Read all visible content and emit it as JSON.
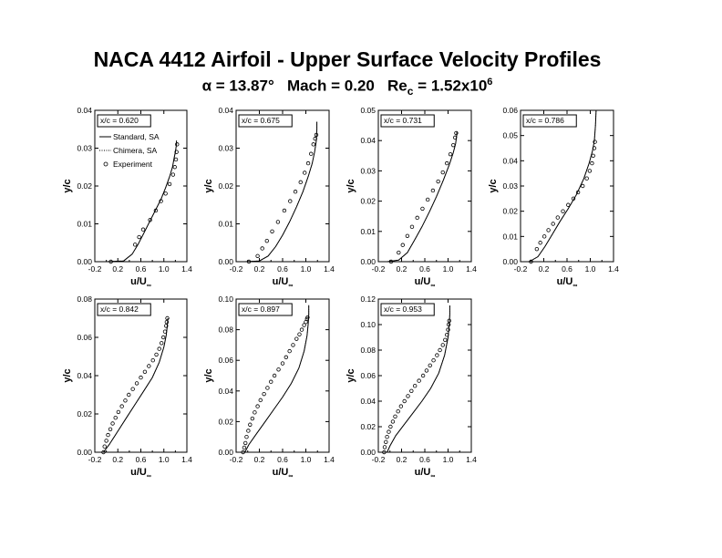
{
  "title": "NACA 4412 Airfoil - Upper Surface Velocity Profiles",
  "subtitle": {
    "alpha_symbol": "α",
    "alpha_text": " = 13.87°",
    "mach": "Mach = 0.20",
    "re_main": "Re",
    "re_sub": "c",
    "re_value": " = 1.52x10",
    "re_exp": "6"
  },
  "legend": {
    "items": [
      {
        "label": "Standard, SA",
        "style": "solid"
      },
      {
        "label": "Chimera, SA",
        "style": "dotted"
      },
      {
        "label": "Experiment",
        "style": "circle"
      }
    ]
  },
  "chart_data": [
    {
      "type": "line",
      "station_label": "x/c = 0.620",
      "xlabel": "u/U",
      "xlabel_sub": "∞",
      "ylabel": "y/c",
      "xlim": [
        -0.2,
        1.4
      ],
      "ylim": [
        0,
        0.04
      ],
      "xticks": [
        "-0.2",
        "0.2",
        "0.6",
        "1.0",
        "1.4"
      ],
      "yticks": [
        "0.00",
        "0.01",
        "0.02",
        "0.03",
        "0.04"
      ],
      "has_legend": true,
      "series": [
        {
          "name": "Standard, SA",
          "style": "solid",
          "x": [
            0.0,
            0.3,
            0.45,
            0.55,
            0.65,
            0.75,
            0.85,
            0.95,
            1.03,
            1.1,
            1.15,
            1.18,
            1.2,
            1.22,
            1.22
          ],
          "y": [
            0.0,
            0.0002,
            0.002,
            0.0045,
            0.0075,
            0.0105,
            0.0135,
            0.0165,
            0.0195,
            0.0225,
            0.025,
            0.0275,
            0.029,
            0.031,
            0.032
          ]
        },
        {
          "name": "Chimera, SA",
          "style": "dotted",
          "x": [
            0.0,
            0.3,
            0.45,
            0.55,
            0.65,
            0.75,
            0.85,
            0.95,
            1.03,
            1.1,
            1.15,
            1.18,
            1.2,
            1.22,
            1.22
          ],
          "y": [
            0.0,
            0.0002,
            0.002,
            0.0045,
            0.0075,
            0.0105,
            0.0135,
            0.0165,
            0.0195,
            0.0225,
            0.025,
            0.0275,
            0.029,
            0.031,
            0.032
          ]
        },
        {
          "name": "Experiment",
          "style": "circle",
          "x": [
            0.08,
            0.5,
            0.57,
            0.64,
            0.76,
            0.86,
            0.95,
            1.03,
            1.1,
            1.16,
            1.19,
            1.21,
            1.22,
            1.23
          ],
          "y": [
            0.0,
            0.0045,
            0.0065,
            0.0085,
            0.011,
            0.0135,
            0.016,
            0.018,
            0.0205,
            0.023,
            0.025,
            0.027,
            0.029,
            0.031
          ]
        }
      ]
    },
    {
      "type": "line",
      "station_label": "x/c = 0.675",
      "xlabel": "u/U",
      "xlabel_sub": "∞",
      "ylabel": "y/c",
      "xlim": [
        -0.2,
        1.4
      ],
      "ylim": [
        0,
        0.04
      ],
      "xticks": [
        "-0.2",
        "0.2",
        "0.6",
        "1.0",
        "1.4"
      ],
      "yticks": [
        "0.00",
        "0.01",
        "0.02",
        "0.03",
        "0.04"
      ],
      "has_legend": false,
      "series": [
        {
          "name": "Standard, SA",
          "style": "solid",
          "x": [
            -0.05,
            0.2,
            0.35,
            0.48,
            0.6,
            0.72,
            0.84,
            0.95,
            1.04,
            1.11,
            1.15,
            1.18,
            1.19,
            1.19
          ],
          "y": [
            0.0,
            0.0002,
            0.0015,
            0.004,
            0.007,
            0.0105,
            0.0145,
            0.0185,
            0.0225,
            0.026,
            0.029,
            0.032,
            0.035,
            0.037
          ]
        },
        {
          "name": "Chimera, SA",
          "style": "dotted",
          "x": [
            -0.05,
            0.2,
            0.35,
            0.48,
            0.6,
            0.72,
            0.84,
            0.95,
            1.04,
            1.11,
            1.15,
            1.18,
            1.19,
            1.19
          ],
          "y": [
            0.0,
            0.0002,
            0.0015,
            0.004,
            0.007,
            0.0105,
            0.0145,
            0.0185,
            0.0225,
            0.026,
            0.029,
            0.032,
            0.035,
            0.037
          ]
        },
        {
          "name": "Experiment",
          "style": "circle",
          "x": [
            0.02,
            0.17,
            0.25,
            0.33,
            0.42,
            0.52,
            0.63,
            0.73,
            0.82,
            0.91,
            0.98,
            1.04,
            1.09,
            1.13,
            1.16,
            1.18
          ],
          "y": [
            0.0,
            0.0015,
            0.0035,
            0.0055,
            0.008,
            0.0105,
            0.0135,
            0.016,
            0.0185,
            0.021,
            0.0235,
            0.026,
            0.0285,
            0.031,
            0.0325,
            0.0335
          ]
        }
      ]
    },
    {
      "type": "line",
      "station_label": "x/c = 0.731",
      "xlabel": "u/U",
      "xlabel_sub": "∞",
      "ylabel": "y/c",
      "xlim": [
        -0.2,
        1.4
      ],
      "ylim": [
        0,
        0.05
      ],
      "xticks": [
        "-0.2",
        "0.2",
        "0.6",
        "1.0",
        "1.4"
      ],
      "yticks": [
        "0.00",
        "0.01",
        "0.02",
        "0.03",
        "0.04",
        "0.05"
      ],
      "has_legend": false,
      "series": [
        {
          "name": "Standard, SA",
          "style": "solid",
          "x": [
            -0.05,
            0.15,
            0.3,
            0.42,
            0.55,
            0.68,
            0.8,
            0.92,
            1.02,
            1.09,
            1.13,
            1.15,
            1.15
          ],
          "y": [
            0.0,
            0.0005,
            0.003,
            0.007,
            0.0115,
            0.0165,
            0.0215,
            0.027,
            0.032,
            0.036,
            0.039,
            0.042,
            0.043
          ]
        },
        {
          "name": "Chimera, SA",
          "style": "dotted",
          "x": [
            -0.05,
            0.15,
            0.3,
            0.42,
            0.55,
            0.68,
            0.8,
            0.92,
            1.02,
            1.09,
            1.13,
            1.15,
            1.15
          ],
          "y": [
            0.0,
            0.0005,
            0.003,
            0.007,
            0.0115,
            0.0165,
            0.0215,
            0.027,
            0.032,
            0.036,
            0.039,
            0.042,
            0.043
          ]
        },
        {
          "name": "Experiment",
          "style": "circle",
          "x": [
            0.02,
            0.15,
            0.22,
            0.3,
            0.38,
            0.47,
            0.56,
            0.65,
            0.74,
            0.83,
            0.91,
            0.98,
            1.04,
            1.09,
            1.12,
            1.14
          ],
          "y": [
            0.0,
            0.003,
            0.0055,
            0.0085,
            0.0115,
            0.0145,
            0.0175,
            0.0205,
            0.0235,
            0.0265,
            0.0295,
            0.0325,
            0.0355,
            0.0385,
            0.041,
            0.0425
          ]
        }
      ]
    },
    {
      "type": "line",
      "station_label": "x/c = 0.786",
      "xlabel": "u/U",
      "xlabel_sub": "∞",
      "ylabel": "y/c",
      "xlim": [
        -0.2,
        1.4
      ],
      "ylim": [
        0,
        0.06
      ],
      "xticks": [
        "-0.2",
        "0.2",
        "0.6",
        "1.0",
        "1.4"
      ],
      "yticks": [
        "0.00",
        "0.01",
        "0.02",
        "0.03",
        "0.04",
        "0.05",
        "0.06"
      ],
      "has_legend": false,
      "series": [
        {
          "name": "Standard, SA",
          "style": "solid",
          "x": [
            -0.05,
            0.1,
            0.22,
            0.35,
            0.48,
            0.62,
            0.76,
            0.89,
            0.98,
            1.04,
            1.07,
            1.09,
            1.1
          ],
          "y": [
            0.0,
            0.002,
            0.006,
            0.011,
            0.016,
            0.021,
            0.0265,
            0.033,
            0.039,
            0.044,
            0.048,
            0.054,
            0.06
          ]
        },
        {
          "name": "Chimera, SA",
          "style": "dotted",
          "x": [
            -0.05,
            0.1,
            0.22,
            0.35,
            0.48,
            0.62,
            0.76,
            0.89,
            0.98,
            1.04,
            1.07,
            1.09,
            1.1
          ],
          "y": [
            0.0,
            0.002,
            0.006,
            0.011,
            0.016,
            0.021,
            0.0265,
            0.033,
            0.039,
            0.044,
            0.048,
            0.054,
            0.06
          ]
        },
        {
          "name": "Experiment",
          "style": "circle",
          "x": [
            -0.02,
            0.08,
            0.14,
            0.21,
            0.28,
            0.36,
            0.44,
            0.53,
            0.62,
            0.71,
            0.79,
            0.87,
            0.94,
            0.99,
            1.03,
            1.05,
            1.07,
            1.08
          ],
          "y": [
            0.0,
            0.005,
            0.0075,
            0.01,
            0.0125,
            0.015,
            0.0175,
            0.02,
            0.0225,
            0.025,
            0.0275,
            0.03,
            0.033,
            0.036,
            0.039,
            0.042,
            0.045,
            0.0475
          ]
        }
      ]
    },
    {
      "type": "line",
      "station_label": "x/c = 0.842",
      "xlabel": "u/U",
      "xlabel_sub": "∞",
      "ylabel": "y/c",
      "xlim": [
        -0.2,
        1.4
      ],
      "ylim": [
        0,
        0.08
      ],
      "xticks": [
        "-0.2",
        "0.2",
        "0.6",
        "1.0",
        "1.4"
      ],
      "yticks": [
        "0.00",
        "0.02",
        "0.04",
        "0.06",
        "0.08"
      ],
      "has_legend": false,
      "series": [
        {
          "name": "Standard, SA",
          "style": "solid",
          "x": [
            -0.05,
            0.05,
            0.2,
            0.35,
            0.5,
            0.65,
            0.8,
            0.92,
            1.0,
            1.04,
            1.06,
            1.07
          ],
          "y": [
            0.0,
            0.004,
            0.011,
            0.018,
            0.025,
            0.032,
            0.039,
            0.047,
            0.055,
            0.061,
            0.066,
            0.07
          ]
        },
        {
          "name": "Chimera, SA",
          "style": "dotted",
          "x": [
            -0.05,
            0.05,
            0.2,
            0.35,
            0.5,
            0.65,
            0.8,
            0.92,
            1.0,
            1.04,
            1.06,
            1.07
          ],
          "y": [
            0.0,
            0.004,
            0.011,
            0.018,
            0.025,
            0.032,
            0.039,
            0.047,
            0.055,
            0.061,
            0.066,
            0.07
          ]
        },
        {
          "name": "Experiment",
          "style": "circle",
          "x": [
            -0.05,
            -0.03,
            0.0,
            0.03,
            0.07,
            0.11,
            0.16,
            0.21,
            0.27,
            0.33,
            0.39,
            0.46,
            0.53,
            0.6,
            0.67,
            0.74,
            0.81,
            0.87,
            0.92,
            0.96,
            0.99,
            1.02,
            1.04,
            1.05,
            1.06
          ],
          "y": [
            0.0,
            0.003,
            0.006,
            0.009,
            0.012,
            0.015,
            0.018,
            0.021,
            0.024,
            0.027,
            0.03,
            0.033,
            0.036,
            0.039,
            0.042,
            0.045,
            0.048,
            0.051,
            0.054,
            0.057,
            0.06,
            0.063,
            0.066,
            0.068,
            0.07
          ]
        }
      ]
    },
    {
      "type": "line",
      "station_label": "x/c = 0.897",
      "xlabel": "u/U",
      "xlabel_sub": "∞",
      "ylabel": "y/c",
      "xlim": [
        -0.2,
        1.4
      ],
      "ylim": [
        0,
        0.1
      ],
      "xticks": [
        "-0.2",
        "0.2",
        "0.6",
        "1.0",
        "1.4"
      ],
      "yticks": [
        "0.00",
        "0.02",
        "0.04",
        "0.06",
        "0.08",
        "0.10"
      ],
      "has_legend": false,
      "series": [
        {
          "name": "Standard, SA",
          "style": "solid",
          "x": [
            -0.05,
            0.02,
            0.15,
            0.3,
            0.45,
            0.6,
            0.75,
            0.88,
            0.97,
            1.02,
            1.04,
            1.05,
            1.05
          ],
          "y": [
            0.0,
            0.005,
            0.012,
            0.02,
            0.028,
            0.036,
            0.045,
            0.055,
            0.066,
            0.076,
            0.084,
            0.09,
            0.096
          ]
        },
        {
          "name": "Chimera, SA",
          "style": "dotted",
          "x": [
            -0.05,
            0.02,
            0.15,
            0.3,
            0.45,
            0.6,
            0.75,
            0.88,
            0.97,
            1.02,
            1.04,
            1.05,
            1.05
          ],
          "y": [
            0.0,
            0.005,
            0.012,
            0.02,
            0.028,
            0.036,
            0.045,
            0.055,
            0.066,
            0.076,
            0.084,
            0.09,
            0.096
          ]
        },
        {
          "name": "Experiment",
          "style": "circle",
          "x": [
            -0.08,
            -0.06,
            -0.04,
            -0.02,
            0.01,
            0.04,
            0.08,
            0.12,
            0.17,
            0.22,
            0.28,
            0.34,
            0.4,
            0.46,
            0.53,
            0.6,
            0.66,
            0.72,
            0.78,
            0.84,
            0.89,
            0.93,
            0.97,
            1.0,
            1.02,
            1.03
          ],
          "y": [
            0.0,
            0.003,
            0.006,
            0.01,
            0.014,
            0.018,
            0.022,
            0.026,
            0.03,
            0.034,
            0.038,
            0.042,
            0.046,
            0.05,
            0.054,
            0.058,
            0.062,
            0.066,
            0.07,
            0.074,
            0.077,
            0.08,
            0.083,
            0.085,
            0.087,
            0.088
          ]
        }
      ]
    },
    {
      "type": "line",
      "station_label": "x/c = 0.953",
      "xlabel": "u/U",
      "xlabel_sub": "∞",
      "ylabel": "y/c",
      "xlim": [
        -0.2,
        1.4
      ],
      "ylim": [
        0,
        0.12
      ],
      "xticks": [
        "-0.2",
        "0.2",
        "0.6",
        "1.0",
        "1.4"
      ],
      "yticks": [
        "0.00",
        "0.02",
        "0.04",
        "0.06",
        "0.08",
        "0.10",
        "0.12"
      ],
      "has_legend": false,
      "series": [
        {
          "name": "Standard, SA",
          "style": "solid",
          "x": [
            -0.05,
            0.0,
            0.1,
            0.25,
            0.4,
            0.55,
            0.7,
            0.84,
            0.94,
            1.0,
            1.02,
            1.03,
            1.03
          ],
          "y": [
            0.0,
            0.005,
            0.013,
            0.022,
            0.031,
            0.04,
            0.05,
            0.062,
            0.076,
            0.09,
            0.1,
            0.108,
            0.115
          ]
        },
        {
          "name": "Chimera, SA",
          "style": "dotted",
          "x": [
            -0.05,
            0.0,
            0.1,
            0.25,
            0.4,
            0.55,
            0.7,
            0.84,
            0.94,
            1.0,
            1.02,
            1.03,
            1.03
          ],
          "y": [
            0.0,
            0.005,
            0.013,
            0.022,
            0.031,
            0.04,
            0.05,
            0.062,
            0.076,
            0.09,
            0.1,
            0.108,
            0.115
          ]
        },
        {
          "name": "Experiment",
          "style": "circle",
          "x": [
            -0.1,
            -0.09,
            -0.07,
            -0.05,
            -0.02,
            0.01,
            0.05,
            0.09,
            0.14,
            0.19,
            0.25,
            0.31,
            0.37,
            0.43,
            0.5,
            0.57,
            0.63,
            0.69,
            0.75,
            0.81,
            0.86,
            0.91,
            0.95,
            0.98,
            1.0,
            1.01,
            1.02
          ],
          "y": [
            0.0,
            0.004,
            0.008,
            0.012,
            0.016,
            0.02,
            0.024,
            0.028,
            0.032,
            0.036,
            0.04,
            0.044,
            0.048,
            0.052,
            0.056,
            0.06,
            0.064,
            0.068,
            0.072,
            0.076,
            0.08,
            0.084,
            0.088,
            0.092,
            0.096,
            0.1,
            0.103
          ]
        }
      ]
    }
  ]
}
